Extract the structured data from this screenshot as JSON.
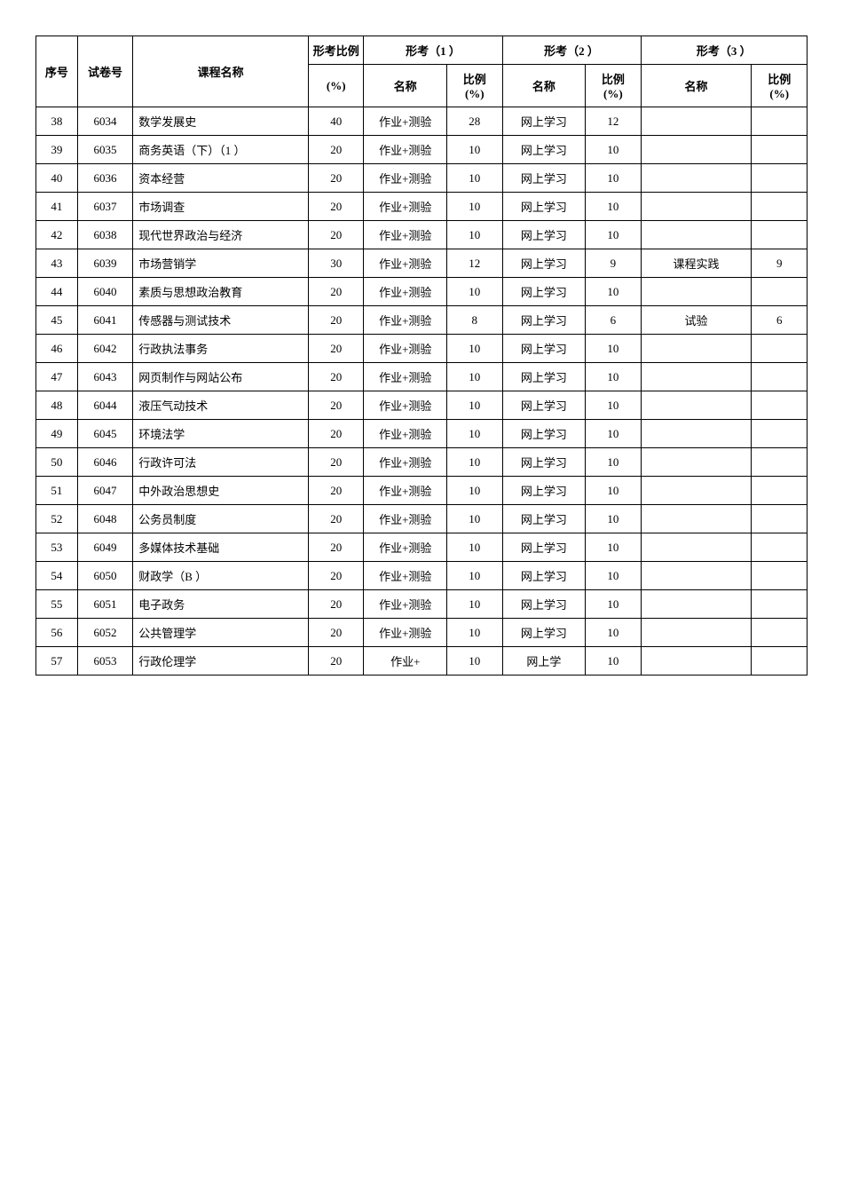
{
  "headers": {
    "seq": "序号",
    "paper": "试卷号",
    "course": "课程名称",
    "xk_ratio": "形考比例",
    "pct_unit": "(%)",
    "group1": "形考（1 ）",
    "group2": "形考（2 ）",
    "group3": "形考（3 ）",
    "name": "名称",
    "ratio": "比例"
  },
  "rows": [
    {
      "seq": "38",
      "paper": "6034",
      "course": "数学发展史",
      "xk": "40",
      "n1": "作业+测验",
      "p1": "28",
      "n2": "网上学习",
      "p2": "12",
      "n3": "",
      "p3": ""
    },
    {
      "seq": "39",
      "paper": "6035",
      "course": "商务英语（下）（1 ）",
      "xk": "20",
      "n1": "作业+测验",
      "p1": "10",
      "n2": "网上学习",
      "p2": "10",
      "n3": "",
      "p3": ""
    },
    {
      "seq": "40",
      "paper": "6036",
      "course": "资本经营",
      "xk": "20",
      "n1": "作业+测验",
      "p1": "10",
      "n2": "网上学习",
      "p2": "10",
      "n3": "",
      "p3": ""
    },
    {
      "seq": "41",
      "paper": "6037",
      "course": "市场调查",
      "xk": "20",
      "n1": "作业+测验",
      "p1": "10",
      "n2": "网上学习",
      "p2": "10",
      "n3": "",
      "p3": ""
    },
    {
      "seq": "42",
      "paper": "6038",
      "course": "现代世界政治与经济",
      "xk": "20",
      "n1": "作业+测验",
      "p1": "10",
      "n2": "网上学习",
      "p2": "10",
      "n3": "",
      "p3": ""
    },
    {
      "seq": "43",
      "paper": "6039",
      "course": "市场营销学",
      "xk": "30",
      "n1": "作业+测验",
      "p1": "12",
      "n2": "网上学习",
      "p2": "9",
      "n3": "课程实践",
      "p3": "9"
    },
    {
      "seq": "44",
      "paper": "6040",
      "course": "素质与思想政治教育",
      "xk": "20",
      "n1": "作业+测验",
      "p1": "10",
      "n2": "网上学习",
      "p2": "10",
      "n3": "",
      "p3": ""
    },
    {
      "seq": "45",
      "paper": "6041",
      "course": "传感器与测试技术",
      "xk": "20",
      "n1": "作业+测验",
      "p1": "8",
      "n2": "网上学习",
      "p2": "6",
      "n3": "试验",
      "p3": "6"
    },
    {
      "seq": "46",
      "paper": "6042",
      "course": "行政执法事务",
      "xk": "20",
      "n1": "作业+测验",
      "p1": "10",
      "n2": "网上学习",
      "p2": "10",
      "n3": "",
      "p3": ""
    },
    {
      "seq": "47",
      "paper": "6043",
      "course": "网页制作与网站公布",
      "xk": "20",
      "n1": "作业+测验",
      "p1": "10",
      "n2": "网上学习",
      "p2": "10",
      "n3": "",
      "p3": ""
    },
    {
      "seq": "48",
      "paper": "6044",
      "course": "液压气动技术",
      "xk": "20",
      "n1": "作业+测验",
      "p1": "10",
      "n2": "网上学习",
      "p2": "10",
      "n3": "",
      "p3": ""
    },
    {
      "seq": "49",
      "paper": "6045",
      "course": "环境法学",
      "xk": "20",
      "n1": "作业+测验",
      "p1": "10",
      "n2": "网上学习",
      "p2": "10",
      "n3": "",
      "p3": ""
    },
    {
      "seq": "50",
      "paper": "6046",
      "course": "行政许可法",
      "xk": "20",
      "n1": "作业+测验",
      "p1": "10",
      "n2": "网上学习",
      "p2": "10",
      "n3": "",
      "p3": ""
    },
    {
      "seq": "51",
      "paper": "6047",
      "course": "中外政治思想史",
      "xk": "20",
      "n1": "作业+测验",
      "p1": "10",
      "n2": "网上学习",
      "p2": "10",
      "n3": "",
      "p3": ""
    },
    {
      "seq": "52",
      "paper": "6048",
      "course": "公务员制度",
      "xk": "20",
      "n1": "作业+测验",
      "p1": "10",
      "n2": "网上学习",
      "p2": "10",
      "n3": "",
      "p3": ""
    },
    {
      "seq": "53",
      "paper": "6049",
      "course": "多媒体技术基础",
      "xk": "20",
      "n1": "作业+测验",
      "p1": "10",
      "n2": "网上学习",
      "p2": "10",
      "n3": "",
      "p3": ""
    },
    {
      "seq": "54",
      "paper": "6050",
      "course": "财政学（B ）",
      "xk": "20",
      "n1": "作业+测验",
      "p1": "10",
      "n2": "网上学习",
      "p2": "10",
      "n3": "",
      "p3": ""
    },
    {
      "seq": "55",
      "paper": "6051",
      "course": "电子政务",
      "xk": "20",
      "n1": "作业+测验",
      "p1": "10",
      "n2": "网上学习",
      "p2": "10",
      "n3": "",
      "p3": ""
    },
    {
      "seq": "56",
      "paper": "6052",
      "course": "公共管理学",
      "xk": "20",
      "n1": "作业+测验",
      "p1": "10",
      "n2": "网上学习",
      "p2": "10",
      "n3": "",
      "p3": ""
    },
    {
      "seq": "57",
      "paper": "6053",
      "course": "行政伦理学",
      "xk": "20",
      "n1": "作业+",
      "p1": "10",
      "n2": "网上学",
      "p2": "10",
      "n3": "",
      "p3": ""
    }
  ]
}
